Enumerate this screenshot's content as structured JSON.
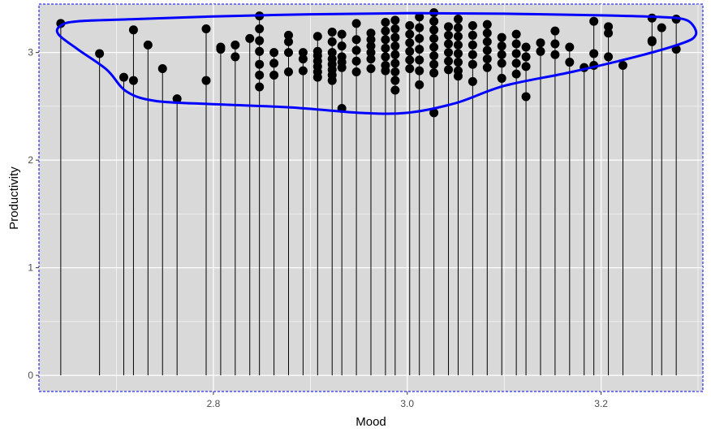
{
  "chart_data": {
    "type": "scatter",
    "title": "",
    "xlabel": "Mood",
    "ylabel": "Productivity",
    "xlim": [
      2.62,
      3.305
    ],
    "ylim": [
      -0.15,
      3.45
    ],
    "x_ticks": [
      2.8,
      3.0,
      3.2
    ],
    "x_tick_labels": [
      "2.8",
      "3.0",
      "3.2"
    ],
    "y_ticks": [
      0,
      1,
      2,
      3
    ],
    "y_tick_labels": [
      "0",
      "1",
      "2",
      "3"
    ],
    "grid": true,
    "legend": "none",
    "vertical_drop_lines_to": 0,
    "colors": {
      "panel": "#d9d9d9",
      "grid": "#ffffff",
      "points": "#000000",
      "ellipse": "#0000ff",
      "border": "#0000ff"
    },
    "points": [
      {
        "x": 2.6425,
        "y": 3.27
      },
      {
        "x": 2.6825,
        "y": 2.99
      },
      {
        "x": 2.7075,
        "y": 2.77
      },
      {
        "x": 2.7175,
        "y": 3.21
      },
      {
        "x": 2.7175,
        "y": 2.74
      },
      {
        "x": 2.7325,
        "y": 3.07
      },
      {
        "x": 2.7475,
        "y": 2.85
      },
      {
        "x": 2.7625,
        "y": 2.57
      },
      {
        "x": 2.7925,
        "y": 3.22
      },
      {
        "x": 2.7925,
        "y": 2.74
      },
      {
        "x": 2.8075,
        "y": 3.05
      },
      {
        "x": 2.8075,
        "y": 3.03
      },
      {
        "x": 2.8225,
        "y": 3.07
      },
      {
        "x": 2.8225,
        "y": 2.96
      },
      {
        "x": 2.8375,
        "y": 3.13
      },
      {
        "x": 2.8475,
        "y": 3.34
      },
      {
        "x": 2.8475,
        "y": 3.22
      },
      {
        "x": 2.8475,
        "y": 3.11
      },
      {
        "x": 2.8475,
        "y": 3.01
      },
      {
        "x": 2.8475,
        "y": 2.89
      },
      {
        "x": 2.8475,
        "y": 2.79
      },
      {
        "x": 2.8475,
        "y": 2.68
      },
      {
        "x": 2.8625,
        "y": 3.0
      },
      {
        "x": 2.8625,
        "y": 2.9
      },
      {
        "x": 2.8625,
        "y": 2.79
      },
      {
        "x": 2.8775,
        "y": 3.16
      },
      {
        "x": 2.8775,
        "y": 3.1
      },
      {
        "x": 2.8775,
        "y": 3.0
      },
      {
        "x": 2.8775,
        "y": 2.82
      },
      {
        "x": 2.8925,
        "y": 3.0
      },
      {
        "x": 2.8925,
        "y": 2.94
      },
      {
        "x": 2.8925,
        "y": 2.83
      },
      {
        "x": 2.9075,
        "y": 3.15
      },
      {
        "x": 2.9075,
        "y": 3.01
      },
      {
        "x": 2.9075,
        "y": 2.97
      },
      {
        "x": 2.9075,
        "y": 2.92
      },
      {
        "x": 2.9075,
        "y": 2.87
      },
      {
        "x": 2.9075,
        "y": 2.82
      },
      {
        "x": 2.9075,
        "y": 2.77
      },
      {
        "x": 2.9225,
        "y": 3.19
      },
      {
        "x": 2.9225,
        "y": 3.1
      },
      {
        "x": 2.9225,
        "y": 3.0
      },
      {
        "x": 2.9225,
        "y": 2.94
      },
      {
        "x": 2.9225,
        "y": 2.89
      },
      {
        "x": 2.9225,
        "y": 2.84
      },
      {
        "x": 2.9225,
        "y": 2.79
      },
      {
        "x": 2.9225,
        "y": 2.74
      },
      {
        "x": 2.9325,
        "y": 3.17
      },
      {
        "x": 2.9325,
        "y": 3.06
      },
      {
        "x": 2.9325,
        "y": 2.96
      },
      {
        "x": 2.9325,
        "y": 2.91
      },
      {
        "x": 2.9325,
        "y": 2.86
      },
      {
        "x": 2.9325,
        "y": 2.48
      },
      {
        "x": 2.9475,
        "y": 3.27
      },
      {
        "x": 2.9475,
        "y": 3.12
      },
      {
        "x": 2.9475,
        "y": 3.02
      },
      {
        "x": 2.9475,
        "y": 2.92
      },
      {
        "x": 2.9475,
        "y": 2.82
      },
      {
        "x": 2.9625,
        "y": 3.18
      },
      {
        "x": 2.9625,
        "y": 3.12
      },
      {
        "x": 2.9625,
        "y": 3.06
      },
      {
        "x": 2.9625,
        "y": 3.0
      },
      {
        "x": 2.9625,
        "y": 2.94
      },
      {
        "x": 2.9625,
        "y": 2.85
      },
      {
        "x": 2.9775,
        "y": 3.28
      },
      {
        "x": 2.9775,
        "y": 3.2
      },
      {
        "x": 2.9775,
        "y": 3.12
      },
      {
        "x": 2.9775,
        "y": 3.04
      },
      {
        "x": 2.9775,
        "y": 2.96
      },
      {
        "x": 2.9775,
        "y": 2.88
      },
      {
        "x": 2.9775,
        "y": 2.83
      },
      {
        "x": 2.9875,
        "y": 3.3
      },
      {
        "x": 2.9875,
        "y": 3.22
      },
      {
        "x": 2.9875,
        "y": 3.14
      },
      {
        "x": 2.9875,
        "y": 3.06
      },
      {
        "x": 2.9875,
        "y": 2.98
      },
      {
        "x": 2.9875,
        "y": 2.9
      },
      {
        "x": 2.9875,
        "y": 2.82
      },
      {
        "x": 2.9875,
        "y": 2.74
      },
      {
        "x": 2.9875,
        "y": 2.65
      },
      {
        "x": 3.0025,
        "y": 3.25
      },
      {
        "x": 3.0025,
        "y": 3.17
      },
      {
        "x": 3.0025,
        "y": 3.09
      },
      {
        "x": 3.0025,
        "y": 3.01
      },
      {
        "x": 3.0025,
        "y": 2.93
      },
      {
        "x": 3.0025,
        "y": 2.85
      },
      {
        "x": 3.0125,
        "y": 3.33
      },
      {
        "x": 3.0125,
        "y": 3.23
      },
      {
        "x": 3.0125,
        "y": 3.13
      },
      {
        "x": 3.0125,
        "y": 3.03
      },
      {
        "x": 3.0125,
        "y": 2.93
      },
      {
        "x": 3.0125,
        "y": 2.83
      },
      {
        "x": 3.0125,
        "y": 2.7
      },
      {
        "x": 3.0275,
        "y": 3.37
      },
      {
        "x": 3.0275,
        "y": 3.29
      },
      {
        "x": 3.0275,
        "y": 3.21
      },
      {
        "x": 3.0275,
        "y": 3.13
      },
      {
        "x": 3.0275,
        "y": 3.05
      },
      {
        "x": 3.0275,
        "y": 2.97
      },
      {
        "x": 3.0275,
        "y": 2.89
      },
      {
        "x": 3.0275,
        "y": 2.81
      },
      {
        "x": 3.0275,
        "y": 2.44
      },
      {
        "x": 3.0425,
        "y": 3.24
      },
      {
        "x": 3.0425,
        "y": 3.16
      },
      {
        "x": 3.0425,
        "y": 3.08
      },
      {
        "x": 3.0425,
        "y": 3.0
      },
      {
        "x": 3.0425,
        "y": 2.92
      },
      {
        "x": 3.0425,
        "y": 2.84
      },
      {
        "x": 3.0525,
        "y": 3.31
      },
      {
        "x": 3.0525,
        "y": 3.23
      },
      {
        "x": 3.0525,
        "y": 3.15
      },
      {
        "x": 3.0525,
        "y": 3.07
      },
      {
        "x": 3.0525,
        "y": 2.99
      },
      {
        "x": 3.0525,
        "y": 2.91
      },
      {
        "x": 3.0525,
        "y": 2.83
      },
      {
        "x": 3.0525,
        "y": 2.78
      },
      {
        "x": 3.0675,
        "y": 3.25
      },
      {
        "x": 3.0675,
        "y": 3.16
      },
      {
        "x": 3.0675,
        "y": 3.07
      },
      {
        "x": 3.0675,
        "y": 2.98
      },
      {
        "x": 3.0675,
        "y": 2.89
      },
      {
        "x": 3.0675,
        "y": 2.73
      },
      {
        "x": 3.0825,
        "y": 3.26
      },
      {
        "x": 3.0825,
        "y": 3.18
      },
      {
        "x": 3.0825,
        "y": 3.1
      },
      {
        "x": 3.0825,
        "y": 3.02
      },
      {
        "x": 3.0825,
        "y": 2.94
      },
      {
        "x": 3.0825,
        "y": 2.86
      },
      {
        "x": 3.0975,
        "y": 3.14
      },
      {
        "x": 3.0975,
        "y": 3.06
      },
      {
        "x": 3.0975,
        "y": 2.98
      },
      {
        "x": 3.0975,
        "y": 2.9
      },
      {
        "x": 3.0975,
        "y": 2.76
      },
      {
        "x": 3.1125,
        "y": 3.17
      },
      {
        "x": 3.1125,
        "y": 3.08
      },
      {
        "x": 3.1125,
        "y": 2.99
      },
      {
        "x": 3.1125,
        "y": 2.9
      },
      {
        "x": 3.1125,
        "y": 2.8
      },
      {
        "x": 3.1225,
        "y": 3.05
      },
      {
        "x": 3.1225,
        "y": 2.96
      },
      {
        "x": 3.1225,
        "y": 2.87
      },
      {
        "x": 3.1225,
        "y": 2.59
      },
      {
        "x": 3.1375,
        "y": 3.09
      },
      {
        "x": 3.1375,
        "y": 3.01
      },
      {
        "x": 3.1525,
        "y": 3.2
      },
      {
        "x": 3.1525,
        "y": 3.08
      },
      {
        "x": 3.1525,
        "y": 2.98
      },
      {
        "x": 3.1675,
        "y": 3.05
      },
      {
        "x": 3.1675,
        "y": 2.91
      },
      {
        "x": 3.1825,
        "y": 2.86
      },
      {
        "x": 3.1925,
        "y": 3.29
      },
      {
        "x": 3.1925,
        "y": 2.99
      },
      {
        "x": 3.1925,
        "y": 2.88
      },
      {
        "x": 3.2075,
        "y": 3.24
      },
      {
        "x": 3.2075,
        "y": 3.18
      },
      {
        "x": 3.2075,
        "y": 2.96
      },
      {
        "x": 3.2225,
        "y": 2.88
      },
      {
        "x": 3.2525,
        "y": 3.32
      },
      {
        "x": 3.2525,
        "y": 3.11
      },
      {
        "x": 3.2525,
        "y": 3.1
      },
      {
        "x": 3.2625,
        "y": 3.23
      },
      {
        "x": 3.2775,
        "y": 3.31
      },
      {
        "x": 3.2775,
        "y": 3.03
      }
    ],
    "ellipse": [
      [
        2.6425,
        3.25
      ],
      [
        2.66,
        3.29
      ],
      [
        2.72,
        3.31
      ],
      [
        2.8,
        3.335
      ],
      [
        2.9,
        3.355
      ],
      [
        3.0,
        3.365
      ],
      [
        3.1,
        3.36
      ],
      [
        3.2,
        3.345
      ],
      [
        3.26,
        3.33
      ],
      [
        3.285,
        3.31
      ],
      [
        3.295,
        3.25
      ],
      [
        3.2975,
        3.16
      ],
      [
        3.285,
        3.09
      ],
      [
        3.24,
        2.97
      ],
      [
        3.17,
        2.82
      ],
      [
        3.1,
        2.69
      ],
      [
        3.05,
        2.53
      ],
      [
        3.0,
        2.44
      ],
      [
        2.95,
        2.44
      ],
      [
        2.88,
        2.49
      ],
      [
        2.8,
        2.52
      ],
      [
        2.74,
        2.55
      ],
      [
        2.71,
        2.64
      ],
      [
        2.69,
        2.84
      ],
      [
        2.66,
        3.03
      ],
      [
        2.64,
        3.17
      ],
      [
        2.6425,
        3.25
      ]
    ]
  }
}
